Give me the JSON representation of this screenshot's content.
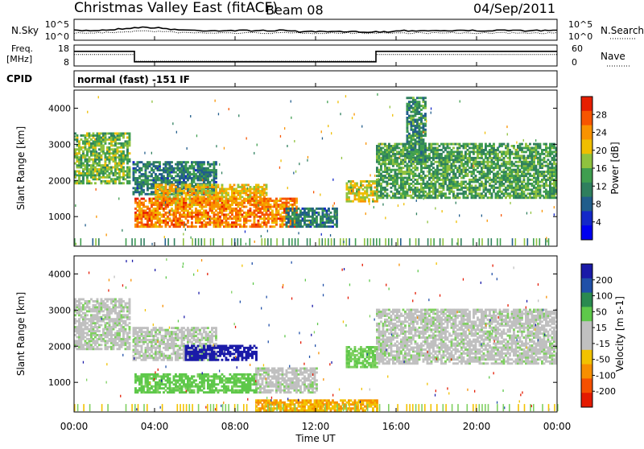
{
  "header": {
    "title": "Christmas Valley East (fitACF)",
    "beam": "Beam 08",
    "date": "04/Sep/2011"
  },
  "sky_panel": {
    "left_label": "N.Sky",
    "left_ticks": [
      "10^5",
      "10^0"
    ],
    "right_label": "N.Search",
    "right_ticks": [
      "10^5",
      "10^0"
    ]
  },
  "freq_panel": {
    "left_label": "Freq.",
    "left_unit": "[MHz]",
    "left_ticks": [
      "18",
      "8"
    ],
    "right_label": "Nave",
    "right_ticks": [
      "60",
      "0"
    ]
  },
  "cpid_panel": {
    "label": "CPID",
    "text": "normal (fast) -151 IF"
  },
  "power_panel": {
    "ylabel": "Slant Range [km]",
    "yticks": [
      1000,
      2000,
      3000,
      4000
    ],
    "colorbar_label": "Power [dB]",
    "colorbar_ticks": [
      "28",
      "24",
      "20",
      "16",
      "12",
      "8",
      "4"
    ],
    "colorbar_colors": [
      "#e61e00",
      "#f75500",
      "#f99300",
      "#efbe00",
      "#8fc23e",
      "#3f9e4f",
      "#2f7f5e",
      "#215d8c",
      "#1428c8",
      "#0000f0"
    ]
  },
  "velocity_panel": {
    "ylabel": "Slant Range [km]",
    "yticks": [
      1000,
      2000,
      3000,
      4000
    ],
    "colorbar_label": "Velocity [m s-1]",
    "colorbar_ticks": [
      "200",
      "100",
      "50",
      "15",
      "-15",
      "-50",
      "-100",
      "-200"
    ],
    "colorbar_colors": [
      "#1a1aa8",
      "#2050a8",
      "#2a8a50",
      "#5ec84a",
      "#c0c0c0",
      "#c0c0c0",
      "#f2c200",
      "#f78f00",
      "#f55000",
      "#e41a00"
    ]
  },
  "chart_data": {
    "type": "heatmap",
    "xlabel": "Time UT",
    "x_ticks": [
      "00:00",
      "04:00",
      "08:00",
      "12:00",
      "16:00",
      "20:00",
      "00:00"
    ],
    "x_range_hours": [
      0,
      24
    ],
    "y_range_km": [
      180,
      4500
    ],
    "frequency_mhz_steps": [
      {
        "start_hour": 0,
        "end_hour": 3,
        "value": 15
      },
      {
        "start_hour": 3,
        "end_hour": 15,
        "value": 10
      },
      {
        "start_hour": 15,
        "end_hour": 24,
        "value": 15
      }
    ],
    "power_echo_regions": [
      {
        "t0": 0,
        "t1": 2.8,
        "r0": 1900,
        "r1": 3300,
        "power_db": 16
      },
      {
        "t0": 2.9,
        "t1": 7,
        "r0": 1600,
        "r1": 2500,
        "power_db": 10
      },
      {
        "t0": 4,
        "t1": 9.5,
        "r0": 1300,
        "r1": 1900,
        "power_db": 22
      },
      {
        "t0": 3,
        "t1": 11,
        "r0": 700,
        "r1": 1500,
        "power_db": 26
      },
      {
        "t0": 10.5,
        "t1": 13,
        "r0": 700,
        "r1": 1200,
        "power_db": 10
      },
      {
        "t0": 13.5,
        "t1": 15,
        "r0": 1400,
        "r1": 2000,
        "power_db": 20
      },
      {
        "t0": 15,
        "t1": 24,
        "r0": 1500,
        "r1": 3000,
        "power_db": 14
      },
      {
        "t0": 16.5,
        "t1": 17.5,
        "r0": 2500,
        "r1": 4300,
        "power_db": 12
      }
    ],
    "velocity_echo_regions": [
      {
        "t0": 0,
        "t1": 2.8,
        "r0": 1900,
        "r1": 3300,
        "velocity": 0
      },
      {
        "t0": 2.9,
        "t1": 7,
        "r0": 1600,
        "r1": 2500,
        "velocity": 0
      },
      {
        "t0": 5.5,
        "t1": 9,
        "r0": 1600,
        "r1": 2000,
        "velocity": 220
      },
      {
        "t0": 3,
        "t1": 9,
        "r0": 700,
        "r1": 1200,
        "velocity": 40
      },
      {
        "t0": 9,
        "t1": 12,
        "r0": 700,
        "r1": 1400,
        "velocity": 0
      },
      {
        "t0": 13.5,
        "t1": 15,
        "r0": 1400,
        "r1": 2000,
        "velocity": 30
      },
      {
        "t0": 9,
        "t1": 15,
        "r0": 200,
        "r1": 500,
        "velocity": -50
      },
      {
        "t0": 15,
        "t1": 24,
        "r0": 1500,
        "r1": 3000,
        "velocity": 0
      }
    ]
  }
}
